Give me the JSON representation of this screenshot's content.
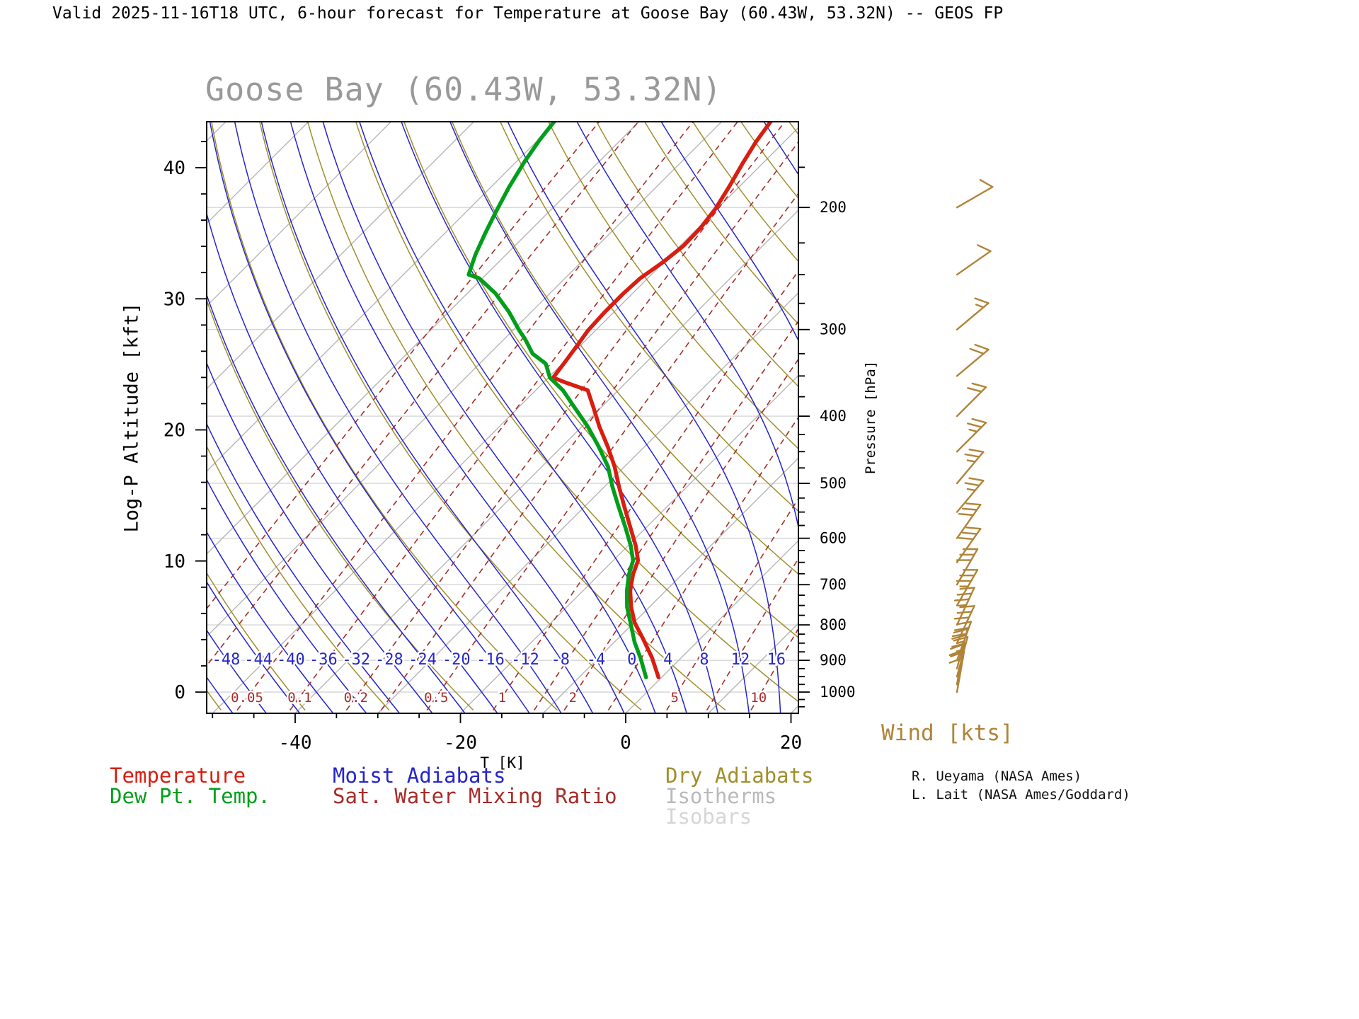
{
  "header": {
    "validity_line": "Valid 2025-11-16T18 UTC, 6-hour forecast for Temperature at Goose Bay (60.43W, 53.32N) -- GEOS FP"
  },
  "chart_title": "Goose Bay (60.43W, 53.32N)",
  "axes": {
    "y_left_label": "Log-P Altitude [kft]",
    "y_left_ticks_kft": [
      0,
      10,
      20,
      30,
      40
    ],
    "y_right_label": "Pressure [hPa]",
    "y_right_ticks_hpa": [
      200,
      300,
      400,
      500,
      600,
      700,
      800,
      900,
      1000
    ],
    "x_label": "T [K]",
    "x_ticks_degc": [
      -40,
      -20,
      0,
      20
    ]
  },
  "legend": {
    "temperature": "Temperature",
    "dewpoint": "Dew Pt. Temp.",
    "moist_adiabats": "Moist Adiabats",
    "mixing_ratio": "Sat. Water Mixing Ratio",
    "dry_adiabats": "Dry Adiabats",
    "isotherms": "Isotherms",
    "isobars": "Isobars"
  },
  "wind_label": "Wind [kts]",
  "credits": [
    "R. Ueyama (NASA Ames)",
    "L. Lait (NASA Ames/Goddard)"
  ],
  "colors": {
    "temperature": "#d81e10",
    "dewpoint": "#009e1a",
    "moist_adiabats": "#2525cc",
    "mixing_ratio": "#a62c28",
    "dry_adiabats": "#a08f2c",
    "isotherms": "#b9b9b9",
    "isobars": "#d6d6d6",
    "wind": "#b08438",
    "title": "#999999"
  },
  "chart_data": {
    "type": "line",
    "subtype": "skew-t-log-p-sounding",
    "station": "Goose Bay",
    "longitude": "60.43W",
    "latitude": "53.32N",
    "model": "GEOS FP",
    "valid": "2025-11-16T18 UTC",
    "forecast_hours": 6,
    "x_axis": {
      "label": "T [K]",
      "surface_range_degc": [
        -51,
        21
      ]
    },
    "y_axis": {
      "label": "Log-P Altitude [kft]",
      "range_kft": [
        -1.6,
        43.5
      ],
      "pressure_range_hpa": [
        1073,
        150
      ]
    },
    "series": [
      {
        "name": "Temperature",
        "color_key": "temperature",
        "units": {
          "p": "hPa",
          "t": "degC"
        },
        "points": [
          [
            952,
            -0.4
          ],
          [
            893,
            -3.5
          ],
          [
            838,
            -6.9
          ],
          [
            794,
            -9.9
          ],
          [
            754,
            -12.2
          ],
          [
            714,
            -14.3
          ],
          [
            677,
            -15.9
          ],
          [
            646,
            -17.0
          ],
          [
            616,
            -19.0
          ],
          [
            578,
            -22.0
          ],
          [
            540,
            -25.2
          ],
          [
            506,
            -28.2
          ],
          [
            473,
            -31.2
          ],
          [
            443,
            -34.4
          ],
          [
            414,
            -37.9
          ],
          [
            388,
            -41.0
          ],
          [
            367,
            -43.7
          ],
          [
            358,
            -47.2
          ],
          [
            352,
            -49.4
          ],
          [
            333,
            -49.9
          ],
          [
            316,
            -50.4
          ],
          [
            301,
            -50.9
          ],
          [
            283,
            -51.1
          ],
          [
            266,
            -51.1
          ],
          [
            253,
            -50.9
          ],
          [
            240,
            -50.1
          ],
          [
            227,
            -49.6
          ],
          [
            214,
            -49.7
          ],
          [
            201,
            -50.2
          ],
          [
            187,
            -51.2
          ],
          [
            173,
            -52.4
          ],
          [
            161,
            -53.4
          ],
          [
            150,
            -54.1
          ]
        ]
      },
      {
        "name": "Dew Pt. Temp.",
        "color_key": "dewpoint",
        "units": {
          "p": "hPa",
          "t": "degC"
        },
        "points": [
          [
            952,
            -1.9
          ],
          [
            893,
            -4.9
          ],
          [
            848,
            -7.5
          ],
          [
            794,
            -10.4
          ],
          [
            754,
            -12.7
          ],
          [
            714,
            -14.7
          ],
          [
            677,
            -16.4
          ],
          [
            646,
            -17.6
          ],
          [
            616,
            -19.6
          ],
          [
            578,
            -22.6
          ],
          [
            540,
            -25.9
          ],
          [
            506,
            -29.0
          ],
          [
            473,
            -32.0
          ],
          [
            443,
            -35.5
          ],
          [
            414,
            -39.3
          ],
          [
            388,
            -43.3
          ],
          [
            367,
            -46.7
          ],
          [
            352,
            -49.8
          ],
          [
            336,
            -52.0
          ],
          [
            325,
            -54.8
          ],
          [
            310,
            -57.4
          ],
          [
            301,
            -59.2
          ],
          [
            283,
            -62.7
          ],
          [
            266,
            -66.6
          ],
          [
            253,
            -70.4
          ],
          [
            250,
            -72.1
          ],
          [
            234,
            -73.7
          ],
          [
            218,
            -75.1
          ],
          [
            203,
            -76.4
          ],
          [
            187,
            -77.8
          ],
          [
            172,
            -79.0
          ],
          [
            160,
            -79.8
          ],
          [
            150,
            -80.3
          ]
        ]
      }
    ],
    "moist_adiabat_labels_degc": [
      -48,
      -44,
      -40,
      -36,
      -32,
      -28,
      -24,
      -20,
      -16,
      -12,
      -8,
      -4,
      0,
      4,
      8,
      12,
      16
    ],
    "mixing_ratio_labels_gkg": [
      0.05,
      0.1,
      0.2,
      0.5,
      1,
      2,
      5,
      10
    ],
    "grid": {
      "isotherm_step_degc": 10,
      "isotherm_range_degc": [
        -130,
        30
      ],
      "dry_adiabat_theta_range_k": [
        200,
        420
      ],
      "dry_adiabat_step_k": 10,
      "moist_adiabat_range_degc": [
        -60,
        28
      ],
      "moist_adiabat_step_degc": 4,
      "mixing_ratio_lines_gkg": [
        0.01,
        0.02,
        0.05,
        0.1,
        0.2,
        0.3,
        0.5,
        1,
        1.5,
        2,
        3,
        5,
        7,
        10,
        15,
        20,
        30
      ],
      "isobars_hpa": [
        200,
        300,
        400,
        500,
        600,
        700,
        800,
        900,
        1000
      ]
    },
    "winds_kts": [
      {
        "p": 200,
        "dir": 60,
        "spd": 10
      },
      {
        "p": 250,
        "dir": 55,
        "spd": 10
      },
      {
        "p": 300,
        "dir": 50,
        "spd": 15
      },
      {
        "p": 350,
        "dir": 50,
        "spd": 20
      },
      {
        "p": 400,
        "dir": 45,
        "spd": 20
      },
      {
        "p": 450,
        "dir": 45,
        "spd": 25
      },
      {
        "p": 500,
        "dir": 40,
        "spd": 25
      },
      {
        "p": 550,
        "dir": 40,
        "spd": 25
      },
      {
        "p": 600,
        "dir": 35,
        "spd": 30
      },
      {
        "p": 650,
        "dir": 35,
        "spd": 30
      },
      {
        "p": 700,
        "dir": 30,
        "spd": 30
      },
      {
        "p": 750,
        "dir": 30,
        "spd": 35
      },
      {
        "p": 800,
        "dir": 25,
        "spd": 35
      },
      {
        "p": 850,
        "dir": 25,
        "spd": 30
      },
      {
        "p": 900,
        "dir": 20,
        "spd": 30
      },
      {
        "p": 925,
        "dir": 15,
        "spd": 25
      },
      {
        "p": 950,
        "dir": 15,
        "spd": 25
      },
      {
        "p": 975,
        "dir": 10,
        "spd": 20
      },
      {
        "p": 1000,
        "dir": 10,
        "spd": 20
      }
    ]
  }
}
